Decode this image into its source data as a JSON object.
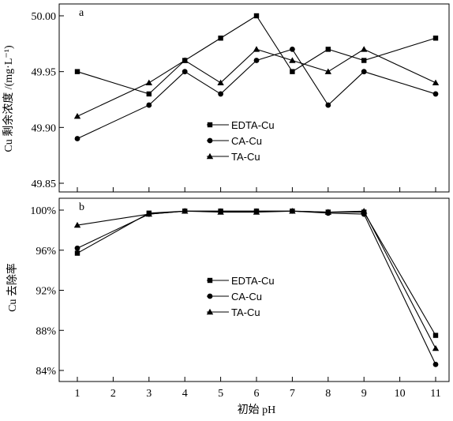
{
  "chart_data": [
    {
      "panel_label": "a",
      "type": "line",
      "ylabel": "Cu 剩余浓度 /(mg·L⁻¹)",
      "xlabel": "",
      "ylim": [
        49.85,
        50.0
      ],
      "yticks": [
        "49.85",
        "49.90",
        "49.95",
        "50.00"
      ],
      "x": [
        1,
        3,
        4,
        5,
        6,
        7,
        8,
        9,
        11
      ],
      "series": [
        {
          "name": "EDTA-Cu",
          "marker": "square",
          "values": [
            49.95,
            49.93,
            49.96,
            49.98,
            50.0,
            49.95,
            49.97,
            49.96,
            49.98
          ]
        },
        {
          "name": "CA-Cu",
          "marker": "circle",
          "values": [
            49.89,
            49.92,
            49.95,
            49.93,
            49.96,
            49.97,
            49.92,
            49.95,
            49.93
          ]
        },
        {
          "name": "TA-Cu",
          "marker": "triangle",
          "values": [
            49.91,
            49.94,
            49.96,
            49.94,
            49.97,
            49.96,
            49.95,
            49.97,
            49.94
          ]
        }
      ],
      "legend_position": "center"
    },
    {
      "panel_label": "b",
      "type": "line",
      "ylabel": "Cu 去除率",
      "xlabel": "初始 pH",
      "ylim": [
        84,
        100
      ],
      "yticks": [
        "84%",
        "88%",
        "92%",
        "96%",
        "100%"
      ],
      "xticks": [
        "1",
        "2",
        "3",
        "4",
        "5",
        "6",
        "7",
        "8",
        "9",
        "10",
        "11"
      ],
      "x": [
        1,
        3,
        4,
        5,
        6,
        7,
        8,
        9,
        11
      ],
      "series": [
        {
          "name": "EDTA-Cu",
          "marker": "square",
          "values": [
            95.7,
            99.7,
            99.9,
            99.9,
            99.9,
            99.9,
            99.8,
            99.8,
            87.5
          ]
        },
        {
          "name": "CA-Cu",
          "marker": "circle",
          "values": [
            96.2,
            99.6,
            99.9,
            99.9,
            99.9,
            99.9,
            99.7,
            99.6,
            84.6
          ]
        },
        {
          "name": "TA-Cu",
          "marker": "triangle",
          "values": [
            98.5,
            99.6,
            99.9,
            99.8,
            99.8,
            99.9,
            99.8,
            99.9,
            86.2
          ]
        }
      ],
      "legend_position": "center"
    }
  ]
}
